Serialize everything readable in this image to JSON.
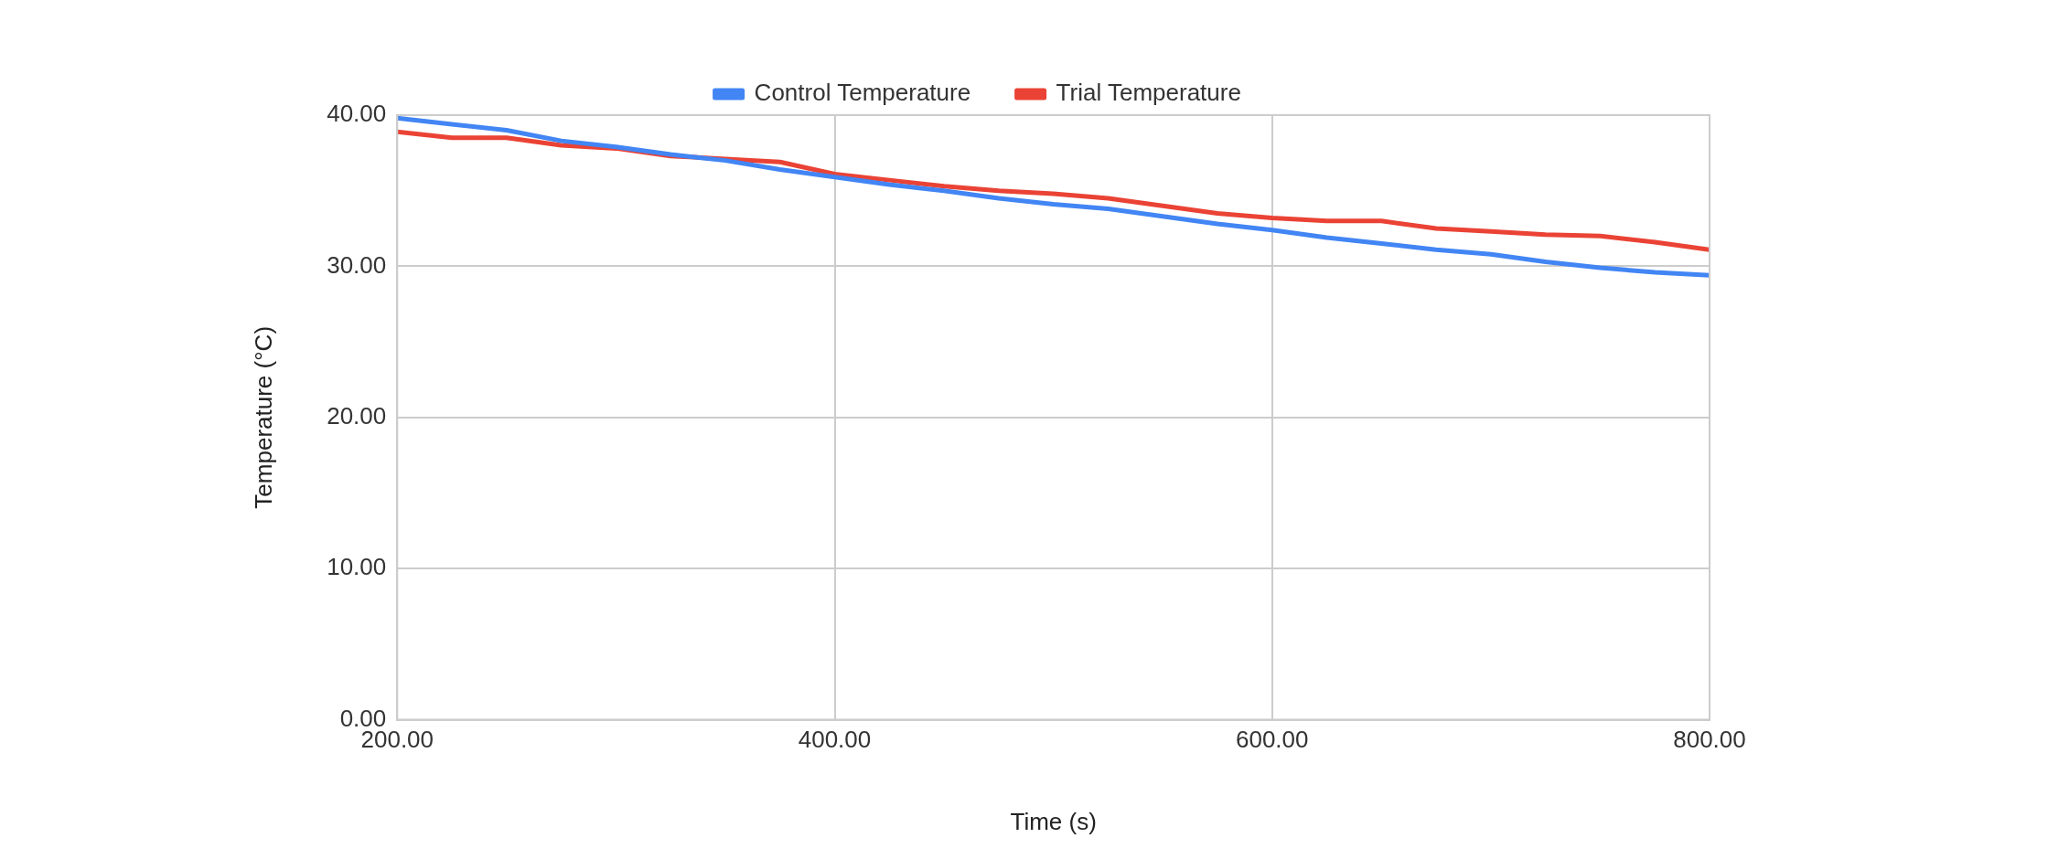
{
  "chart_data": {
    "type": "line",
    "xlabel": "Time (s)",
    "ylabel": "Temperature (°C)",
    "x": [
      200,
      225,
      250,
      275,
      300,
      325,
      350,
      375,
      400,
      425,
      450,
      475,
      500,
      525,
      550,
      575,
      600,
      625,
      650,
      675,
      700,
      725,
      750,
      775,
      800
    ],
    "series": [
      {
        "name": "Control Temperature",
        "color": "#4285f4",
        "values": [
          39.8,
          39.4,
          39.0,
          38.3,
          37.9,
          37.4,
          37.0,
          36.4,
          35.9,
          35.4,
          35.0,
          34.5,
          34.1,
          33.8,
          33.3,
          32.8,
          32.4,
          31.9,
          31.5,
          31.1,
          30.8,
          30.3,
          29.9,
          29.6,
          29.4
        ]
      },
      {
        "name": "Trial Temperature",
        "color": "#ea4335",
        "values": [
          38.9,
          38.5,
          38.5,
          38.0,
          37.8,
          37.3,
          37.1,
          36.9,
          36.1,
          35.7,
          35.3,
          35.0,
          34.8,
          34.5,
          34.0,
          33.5,
          33.2,
          33.0,
          33.0,
          32.5,
          32.3,
          32.1,
          32.0,
          31.6,
          31.1
        ]
      }
    ],
    "xlim": [
      200,
      800
    ],
    "xticks": [
      {
        "value": 200,
        "label": "200.00"
      },
      {
        "value": 400,
        "label": "400.00"
      },
      {
        "value": 600,
        "label": "600.00"
      },
      {
        "value": 800,
        "label": "800.00"
      }
    ],
    "ylim": [
      0,
      40
    ],
    "yticks": [
      {
        "value": 0,
        "label": "0.00"
      },
      {
        "value": 10,
        "label": "10.00"
      },
      {
        "value": 20,
        "label": "20.00"
      },
      {
        "value": 30,
        "label": "30.00"
      },
      {
        "value": 40,
        "label": "40.00"
      }
    ],
    "grid": true,
    "legend": "top",
    "marker": "none",
    "line_style": "solid"
  }
}
